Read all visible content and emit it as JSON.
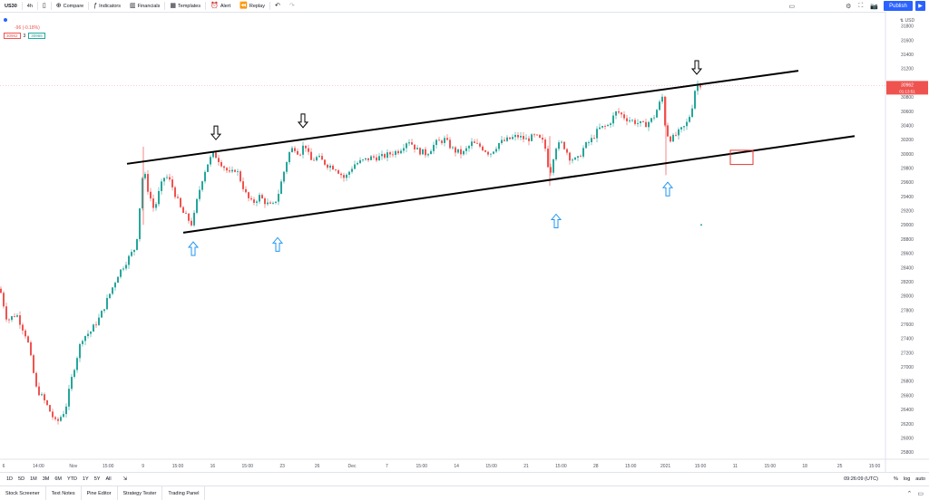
{
  "toolbar": {
    "symbol": "US30",
    "interval": "4h",
    "compare": "Compare",
    "indicators": "Indicators",
    "financials": "Financials",
    "templates": "Templates",
    "alert": "Alert",
    "replay": "Replay",
    "publish": "Publish"
  },
  "legend": {
    "change": "-96 (-0.18%)",
    "bid": "30962",
    "spread": "3",
    "ask": "30965"
  },
  "price_axis": {
    "currency": "USD",
    "last_price": "30962",
    "countdown": "01:13:51"
  },
  "bottom_bar": {
    "ranges": [
      "1D",
      "5D",
      "1M",
      "3M",
      "6M",
      "YTD",
      "1Y",
      "5Y",
      "All"
    ],
    "time": "09:26:09 (UTC)",
    "percent": "%",
    "log": "log",
    "auto": "auto"
  },
  "panels": [
    "Stock Screener",
    "Text Notes",
    "Pine Editor",
    "Strategy Tester",
    "Trading Panel"
  ],
  "colors": {
    "up": "#26a69a",
    "down": "#ef5350",
    "trendline": "#000000",
    "arrow_up": "#2196f3",
    "box": "#e53935"
  },
  "chart_data": {
    "type": "candlestick",
    "ylim": [
      25700,
      32000
    ],
    "yticks": [
      25800,
      26000,
      26200,
      26400,
      26600,
      26800,
      27000,
      27200,
      27400,
      27600,
      27800,
      28000,
      28200,
      28400,
      28600,
      28800,
      29000,
      29200,
      29400,
      29600,
      29800,
      30000,
      30200,
      30400,
      30600,
      30800,
      31000,
      31200,
      31400,
      31600,
      31800
    ],
    "xticks": [
      "6",
      "14:00",
      "Nov",
      "15:00",
      "9",
      "15:00",
      "16",
      "15:00",
      "23",
      "26",
      "Dec",
      "7",
      "15:00",
      "14",
      "15:00",
      "21",
      "15:00",
      "28",
      "15:00",
      "2021",
      "15:00",
      "11",
      "15:00",
      "18",
      "25",
      "15:00"
    ],
    "close_path": [
      [
        0,
        28100
      ],
      [
        8,
        27650
      ],
      [
        18,
        27750
      ],
      [
        30,
        27400
      ],
      [
        40,
        26700
      ],
      [
        50,
        26500
      ],
      [
        62,
        26200
      ],
      [
        72,
        26400
      ],
      [
        80,
        26900
      ],
      [
        90,
        27400
      ],
      [
        100,
        27500
      ],
      [
        110,
        27700
      ],
      [
        120,
        28000
      ],
      [
        130,
        28300
      ],
      [
        140,
        28500
      ],
      [
        150,
        28700
      ],
      [
        158,
        29800
      ],
      [
        163,
        29500
      ],
      [
        170,
        29200
      ],
      [
        176,
        29500
      ],
      [
        182,
        29700
      ],
      [
        188,
        29600
      ],
      [
        194,
        29400
      ],
      [
        200,
        29200
      ],
      [
        206,
        29100
      ],
      [
        212,
        29000
      ],
      [
        218,
        29400
      ],
      [
        224,
        29700
      ],
      [
        230,
        29900
      ],
      [
        236,
        30000
      ],
      [
        242,
        29900
      ],
      [
        248,
        29800
      ],
      [
        254,
        29700
      ],
      [
        260,
        29800
      ],
      [
        266,
        29600
      ],
      [
        272,
        29400
      ],
      [
        278,
        29300
      ],
      [
        286,
        29400
      ],
      [
        294,
        29300
      ],
      [
        300,
        29250
      ],
      [
        306,
        29400
      ],
      [
        312,
        29700
      ],
      [
        318,
        30000
      ],
      [
        324,
        30100
      ],
      [
        330,
        30000
      ],
      [
        336,
        30150
      ],
      [
        342,
        29900
      ],
      [
        350,
        29950
      ],
      [
        360,
        29850
      ],
      [
        370,
        29800
      ],
      [
        380,
        29650
      ],
      [
        390,
        29850
      ],
      [
        400,
        29900
      ],
      [
        410,
        29950
      ],
      [
        420,
        29950
      ],
      [
        430,
        30000
      ],
      [
        440,
        30050
      ],
      [
        450,
        30200
      ],
      [
        460,
        30050
      ],
      [
        470,
        30000
      ],
      [
        480,
        30150
      ],
      [
        490,
        30200
      ],
      [
        500,
        30050
      ],
      [
        510,
        30000
      ],
      [
        520,
        30150
      ],
      [
        530,
        30100
      ],
      [
        540,
        30000
      ],
      [
        550,
        30150
      ],
      [
        560,
        30200
      ],
      [
        570,
        30250
      ],
      [
        580,
        30200
      ],
      [
        590,
        30250
      ],
      [
        600,
        30150
      ],
      [
        606,
        29700
      ],
      [
        612,
        30100
      ],
      [
        620,
        30150
      ],
      [
        628,
        29950
      ],
      [
        636,
        29900
      ],
      [
        644,
        30100
      ],
      [
        652,
        30200
      ],
      [
        660,
        30350
      ],
      [
        670,
        30400
      ],
      [
        680,
        30600
      ],
      [
        690,
        30500
      ],
      [
        700,
        30450
      ],
      [
        710,
        30400
      ],
      [
        720,
        30500
      ],
      [
        730,
        30800
      ],
      [
        734,
        30300
      ],
      [
        740,
        30200
      ],
      [
        748,
        30300
      ],
      [
        756,
        30400
      ],
      [
        762,
        30600
      ],
      [
        766,
        30900
      ],
      [
        770,
        31000
      ],
      [
        774,
        30962
      ]
    ],
    "trendlines": [
      {
        "from": [
          140,
          29860
        ],
        "to": [
          880,
          31170
        ]
      },
      {
        "from": [
          202,
          28890
        ],
        "to": [
          942,
          30250
        ]
      }
    ],
    "markers": {
      "down_arrows": [
        [
          238,
          30200
        ],
        [
          334,
          30370
        ],
        [
          768,
          31120
        ]
      ],
      "up_arrows": [
        [
          213,
          28760
        ],
        [
          306,
          28820
        ],
        [
          613,
          29150
        ],
        [
          736,
          29600
        ]
      ],
      "box": [
        [
          805,
          29850
        ],
        [
          830,
          30050
        ]
      ]
    }
  }
}
